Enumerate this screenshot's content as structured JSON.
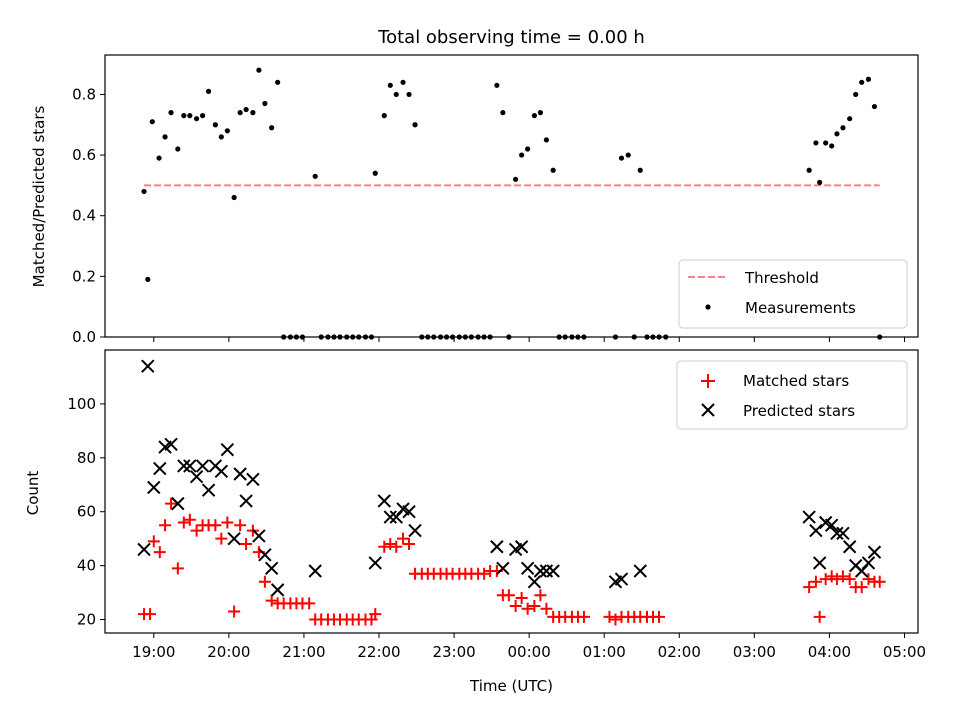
{
  "figure": {
    "title": "Total observing time = 0.00 h",
    "xlabel": "Time (UTC)"
  },
  "chart_data": [
    {
      "type": "scatter",
      "title": "Total observing time = 0.00 h",
      "ylabel": "Matched/Predicted stars",
      "xlabel": "",
      "x_unit": "hours after 18:00 UTC",
      "xlim": [
        18.35,
        29.18
      ],
      "ylim": [
        0,
        0.93
      ],
      "yticks": [
        0.0,
        0.2,
        0.4,
        0.6,
        0.8
      ],
      "ytick_labels": [
        "0.0",
        "0.2",
        "0.4",
        "0.6",
        "0.8"
      ],
      "legend_position": "lower right",
      "threshold": {
        "name": "Threshold",
        "color": "#ff8080",
        "y": 0.5,
        "x": [
          18.87,
          28.67
        ]
      },
      "series": [
        {
          "name": "Measurements",
          "color": "#000000",
          "points": [
            [
              18.87,
              0.48
            ],
            [
              18.92,
              0.19
            ],
            [
              18.98,
              0.71
            ],
            [
              19.07,
              0.59
            ],
            [
              19.15,
              0.66
            ],
            [
              19.23,
              0.74
            ],
            [
              19.32,
              0.62
            ],
            [
              19.4,
              0.73
            ],
            [
              19.48,
              0.73
            ],
            [
              19.57,
              0.72
            ],
            [
              19.65,
              0.73
            ],
            [
              19.73,
              0.81
            ],
            [
              19.82,
              0.7
            ],
            [
              19.9,
              0.66
            ],
            [
              19.98,
              0.68
            ],
            [
              20.07,
              0.46
            ],
            [
              20.15,
              0.74
            ],
            [
              20.23,
              0.75
            ],
            [
              20.32,
              0.74
            ],
            [
              20.4,
              0.88
            ],
            [
              20.48,
              0.77
            ],
            [
              20.57,
              0.69
            ],
            [
              20.65,
              0.84
            ],
            [
              20.73,
              0.0
            ],
            [
              20.82,
              0.0
            ],
            [
              20.9,
              0.0
            ],
            [
              20.98,
              0.0
            ],
            [
              21.15,
              0.53
            ],
            [
              21.23,
              0.0
            ],
            [
              21.32,
              0.0
            ],
            [
              21.4,
              0.0
            ],
            [
              21.48,
              0.0
            ],
            [
              21.57,
              0.0
            ],
            [
              21.65,
              0.0
            ],
            [
              21.73,
              0.0
            ],
            [
              21.82,
              0.0
            ],
            [
              21.9,
              0.0
            ],
            [
              21.95,
              0.54
            ],
            [
              22.07,
              0.73
            ],
            [
              22.15,
              0.83
            ],
            [
              22.23,
              0.8
            ],
            [
              22.32,
              0.84
            ],
            [
              22.4,
              0.8
            ],
            [
              22.48,
              0.7
            ],
            [
              22.57,
              0.0
            ],
            [
              22.65,
              0.0
            ],
            [
              22.73,
              0.0
            ],
            [
              22.82,
              0.0
            ],
            [
              22.9,
              0.0
            ],
            [
              22.98,
              0.0
            ],
            [
              23.07,
              0.0
            ],
            [
              23.15,
              0.0
            ],
            [
              23.23,
              0.0
            ],
            [
              23.32,
              0.0
            ],
            [
              23.4,
              0.0
            ],
            [
              23.48,
              0.0
            ],
            [
              23.57,
              0.83
            ],
            [
              23.65,
              0.74
            ],
            [
              23.73,
              0.0
            ],
            [
              23.82,
              0.52
            ],
            [
              23.9,
              0.6
            ],
            [
              23.98,
              0.62
            ],
            [
              24.07,
              0.73
            ],
            [
              24.15,
              0.74
            ],
            [
              24.23,
              0.65
            ],
            [
              24.32,
              0.55
            ],
            [
              24.4,
              0.0
            ],
            [
              24.48,
              0.0
            ],
            [
              24.57,
              0.0
            ],
            [
              24.65,
              0.0
            ],
            [
              24.73,
              0.0
            ],
            [
              25.15,
              0.0
            ],
            [
              25.23,
              0.59
            ],
            [
              25.32,
              0.6
            ],
            [
              25.4,
              0.0
            ],
            [
              25.48,
              0.55
            ],
            [
              25.57,
              0.0
            ],
            [
              25.65,
              0.0
            ],
            [
              25.73,
              0.0
            ],
            [
              25.82,
              0.0
            ],
            [
              27.73,
              0.55
            ],
            [
              27.82,
              0.64
            ],
            [
              27.87,
              0.51
            ],
            [
              27.95,
              0.64
            ],
            [
              28.03,
              0.63
            ],
            [
              28.1,
              0.67
            ],
            [
              28.18,
              0.69
            ],
            [
              28.27,
              0.72
            ],
            [
              28.35,
              0.8
            ],
            [
              28.43,
              0.84
            ],
            [
              28.52,
              0.85
            ],
            [
              28.6,
              0.76
            ],
            [
              28.67,
              0.0
            ]
          ]
        }
      ]
    },
    {
      "type": "scatter",
      "title": "",
      "ylabel": "Count",
      "xlabel": "Time (UTC)",
      "x_unit": "hours after 18:00 UTC",
      "xlim": [
        18.35,
        29.18
      ],
      "ylim": [
        15,
        120
      ],
      "yticks": [
        20,
        40,
        60,
        80,
        100
      ],
      "ytick_labels": [
        "20",
        "40",
        "60",
        "80",
        "100"
      ],
      "xticks": [
        19,
        20,
        21,
        22,
        23,
        24,
        25,
        26,
        27,
        28,
        29
      ],
      "xtick_labels": [
        "19:00",
        "20:00",
        "21:00",
        "22:00",
        "23:00",
        "00:00",
        "01:00",
        "02:00",
        "03:00",
        "04:00",
        "05:00"
      ],
      "legend_position": "upper right",
      "series": [
        {
          "name": "Matched stars",
          "marker": "+",
          "color": "#ff0000",
          "points": [
            [
              18.87,
              22
            ],
            [
              18.95,
              22
            ],
            [
              19.0,
              49
            ],
            [
              19.08,
              45
            ],
            [
              19.15,
              55
            ],
            [
              19.23,
              63
            ],
            [
              19.32,
              39
            ],
            [
              19.4,
              56
            ],
            [
              19.48,
              57
            ],
            [
              19.57,
              53
            ],
            [
              19.65,
              55
            ],
            [
              19.73,
              55
            ],
            [
              19.82,
              55
            ],
            [
              19.9,
              50
            ],
            [
              19.98,
              56
            ],
            [
              20.07,
              23
            ],
            [
              20.15,
              55
            ],
            [
              20.23,
              48
            ],
            [
              20.32,
              53
            ],
            [
              20.4,
              45
            ],
            [
              20.48,
              34
            ],
            [
              20.57,
              27
            ],
            [
              20.65,
              26
            ],
            [
              20.73,
              26
            ],
            [
              20.82,
              26
            ],
            [
              20.9,
              26
            ],
            [
              20.98,
              26
            ],
            [
              21.07,
              26
            ],
            [
              21.15,
              20
            ],
            [
              21.23,
              20
            ],
            [
              21.32,
              20
            ],
            [
              21.4,
              20
            ],
            [
              21.48,
              20
            ],
            [
              21.57,
              20
            ],
            [
              21.65,
              20
            ],
            [
              21.73,
              20
            ],
            [
              21.82,
              20
            ],
            [
              21.9,
              20
            ],
            [
              21.95,
              22
            ],
            [
              22.07,
              47
            ],
            [
              22.15,
              48
            ],
            [
              22.23,
              47
            ],
            [
              22.32,
              50
            ],
            [
              22.4,
              48
            ],
            [
              22.48,
              37
            ],
            [
              22.57,
              37
            ],
            [
              22.65,
              37
            ],
            [
              22.73,
              37
            ],
            [
              22.82,
              37
            ],
            [
              22.9,
              37
            ],
            [
              22.98,
              37
            ],
            [
              23.07,
              37
            ],
            [
              23.15,
              37
            ],
            [
              23.23,
              37
            ],
            [
              23.32,
              37
            ],
            [
              23.4,
              37
            ],
            [
              23.48,
              38
            ],
            [
              23.57,
              38
            ],
            [
              23.65,
              29
            ],
            [
              23.73,
              29
            ],
            [
              23.82,
              25
            ],
            [
              23.9,
              28
            ],
            [
              23.98,
              24
            ],
            [
              24.07,
              25
            ],
            [
              24.15,
              29
            ],
            [
              24.23,
              24
            ],
            [
              24.32,
              21
            ],
            [
              24.4,
              21
            ],
            [
              24.48,
              21
            ],
            [
              24.57,
              21
            ],
            [
              24.65,
              21
            ],
            [
              24.73,
              21
            ],
            [
              25.07,
              21
            ],
            [
              25.15,
              20
            ],
            [
              25.23,
              21
            ],
            [
              25.32,
              21
            ],
            [
              25.4,
              21
            ],
            [
              25.48,
              21
            ],
            [
              25.57,
              21
            ],
            [
              25.65,
              21
            ],
            [
              25.73,
              21
            ],
            [
              27.73,
              32
            ],
            [
              27.82,
              34
            ],
            [
              27.87,
              21
            ],
            [
              27.95,
              35
            ],
            [
              28.03,
              36
            ],
            [
              28.1,
              35
            ],
            [
              28.18,
              36
            ],
            [
              28.27,
              35
            ],
            [
              28.35,
              32
            ],
            [
              28.43,
              32
            ],
            [
              28.52,
              35
            ],
            [
              28.6,
              34
            ],
            [
              28.67,
              34
            ]
          ]
        },
        {
          "name": "Predicted stars",
          "marker": "x",
          "color": "#000000",
          "points": [
            [
              18.87,
              46
            ],
            [
              18.92,
              114
            ],
            [
              19.0,
              69
            ],
            [
              19.08,
              76
            ],
            [
              19.15,
              84
            ],
            [
              19.23,
              85
            ],
            [
              19.32,
              63
            ],
            [
              19.4,
              77
            ],
            [
              19.48,
              77
            ],
            [
              19.57,
              73
            ],
            [
              19.65,
              77
            ],
            [
              19.73,
              68
            ],
            [
              19.82,
              77
            ],
            [
              19.9,
              75
            ],
            [
              19.98,
              83
            ],
            [
              20.07,
              50
            ],
            [
              20.15,
              74
            ],
            [
              20.23,
              64
            ],
            [
              20.32,
              72
            ],
            [
              20.4,
              51
            ],
            [
              20.48,
              44
            ],
            [
              20.57,
              39
            ],
            [
              20.65,
              31
            ],
            [
              21.15,
              38
            ],
            [
              21.95,
              41
            ],
            [
              22.07,
              64
            ],
            [
              22.15,
              58
            ],
            [
              22.23,
              58
            ],
            [
              22.32,
              61
            ],
            [
              22.4,
              60
            ],
            [
              22.48,
              53
            ],
            [
              23.57,
              47
            ],
            [
              23.65,
              39
            ],
            [
              23.82,
              46
            ],
            [
              23.9,
              47
            ],
            [
              23.98,
              39
            ],
            [
              24.07,
              34
            ],
            [
              24.15,
              38
            ],
            [
              24.23,
              38
            ],
            [
              24.32,
              38
            ],
            [
              25.15,
              34
            ],
            [
              25.23,
              35
            ],
            [
              25.48,
              38
            ],
            [
              27.73,
              58
            ],
            [
              27.82,
              53
            ],
            [
              27.87,
              41
            ],
            [
              27.95,
              56
            ],
            [
              28.03,
              55
            ],
            [
              28.1,
              52
            ],
            [
              28.18,
              52
            ],
            [
              28.27,
              47
            ],
            [
              28.35,
              40
            ],
            [
              28.43,
              38
            ],
            [
              28.52,
              41
            ],
            [
              28.6,
              45
            ]
          ]
        }
      ]
    }
  ]
}
